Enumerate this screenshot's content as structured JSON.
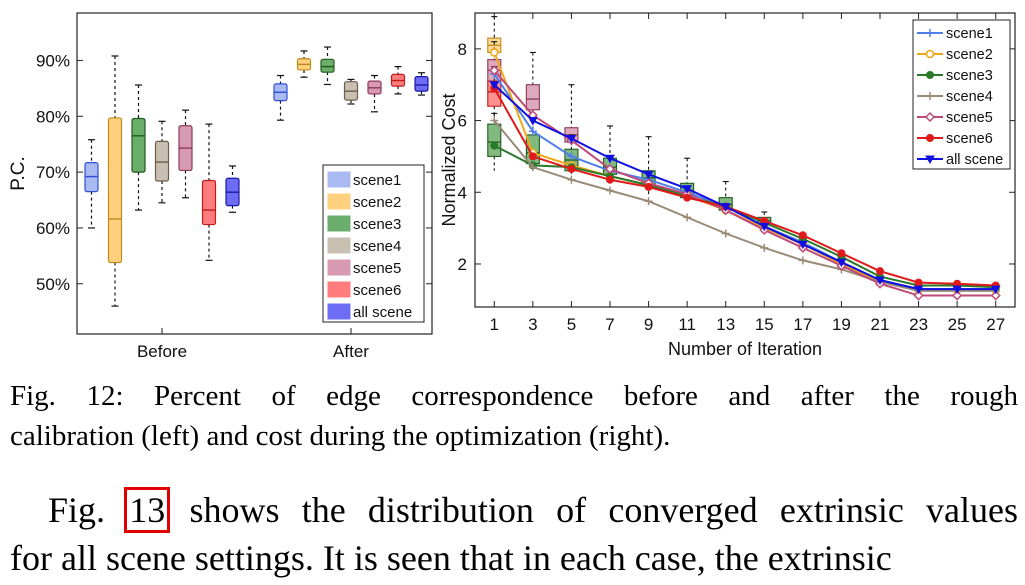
{
  "figure": {
    "caption_line1": "Fig. 12: Percent of edge correspondence before and after the rough",
    "caption_line2": "calibration (left) and cost during the optimization (right)."
  },
  "text": {
    "line1_pre": "Fig. ",
    "line1_ref": "13",
    "line1_post": " shows the distribution of converged extrinsic values",
    "line2": "for all scene settings. It is seen that in each case, the extrinsic"
  },
  "chart_data": [
    {
      "type": "boxplot",
      "ylabel": "P.C.",
      "categories": [
        "Before",
        "After"
      ],
      "ylim": [
        0.41,
        0.985
      ],
      "yticks": [
        0.5,
        0.6,
        0.7,
        0.8,
        0.9
      ],
      "ytick_labels": [
        "50%",
        "60%",
        "70%",
        "80%",
        "90%"
      ],
      "legend_position": "bottom-right",
      "series": [
        {
          "name": "scene1",
          "color": "#a9b9f2",
          "edge": "#3050d8",
          "boxes": [
            {
              "group": "Before",
              "min": 0.6,
              "q1": 0.665,
              "median": 0.692,
              "q3": 0.717,
              "max": 0.758
            },
            {
              "group": "After",
              "min": 0.793,
              "q1": 0.828,
              "median": 0.843,
              "q3": 0.858,
              "max": 0.873
            }
          ]
        },
        {
          "name": "scene2",
          "color": "#ffd17f",
          "edge": "#c08a1a",
          "boxes": [
            {
              "group": "Before",
              "min": 0.46,
              "q1": 0.538,
              "median": 0.616,
              "q3": 0.797,
              "max": 0.908
            },
            {
              "group": "After",
              "min": 0.87,
              "q1": 0.883,
              "median": 0.893,
              "q3": 0.903,
              "max": 0.917
            }
          ]
        },
        {
          "name": "scene3",
          "color": "#6bad6b",
          "edge": "#1f5c1f",
          "boxes": [
            {
              "group": "Before",
              "min": 0.632,
              "q1": 0.7,
              "median": 0.765,
              "q3": 0.796,
              "max": 0.856
            },
            {
              "group": "After",
              "min": 0.857,
              "q1": 0.879,
              "median": 0.889,
              "q3": 0.902,
              "max": 0.924
            }
          ]
        },
        {
          "name": "scene4",
          "color": "#c9bfb1",
          "edge": "#6b5d4a",
          "boxes": [
            {
              "group": "Before",
              "min": 0.645,
              "q1": 0.684,
              "median": 0.718,
              "q3": 0.755,
              "max": 0.791
            },
            {
              "group": "After",
              "min": 0.822,
              "q1": 0.829,
              "median": 0.845,
              "q3": 0.862,
              "max": 0.866
            }
          ]
        },
        {
          "name": "scene5",
          "color": "#d89ab0",
          "edge": "#8a3a58",
          "boxes": [
            {
              "group": "Before",
              "min": 0.654,
              "q1": 0.703,
              "median": 0.743,
              "q3": 0.783,
              "max": 0.811
            },
            {
              "group": "After",
              "min": 0.808,
              "q1": 0.84,
              "median": 0.851,
              "q3": 0.863,
              "max": 0.873
            }
          ]
        },
        {
          "name": "scene6",
          "color": "#ff7c7c",
          "edge": "#c01a1a",
          "boxes": [
            {
              "group": "Before",
              "min": 0.542,
              "q1": 0.606,
              "median": 0.632,
              "q3": 0.685,
              "max": 0.786
            },
            {
              "group": "After",
              "min": 0.84,
              "q1": 0.854,
              "median": 0.864,
              "q3": 0.875,
              "max": 0.889
            }
          ]
        },
        {
          "name": "all scene",
          "color": "#6c6cf5",
          "edge": "#1a1aa8",
          "boxes": [
            {
              "group": "Before",
              "min": 0.628,
              "q1": 0.64,
              "median": 0.664,
              "q3": 0.689,
              "max": 0.711
            },
            {
              "group": "After",
              "min": 0.838,
              "q1": 0.845,
              "median": 0.856,
              "q3": 0.871,
              "max": 0.878
            }
          ]
        }
      ]
    },
    {
      "type": "line",
      "xlabel": "Number of Iteration",
      "ylabel": "Normalized Cost",
      "x": [
        1,
        3,
        5,
        7,
        9,
        11,
        13,
        15,
        17,
        19,
        21,
        23,
        25,
        27
      ],
      "xlim": [
        0,
        28
      ],
      "ylim": [
        0.8,
        9.0
      ],
      "yticks": [
        2,
        4,
        6,
        8
      ],
      "legend_position": "top-right",
      "series": [
        {
          "name": "scene1",
          "color": "#4f7fe8",
          "marker": "plus",
          "values": [
            7.3,
            5.7,
            5.0,
            4.6,
            4.35,
            4.0,
            3.6,
            3.05,
            2.6,
            2.05,
            1.55,
            1.3,
            1.3,
            1.3
          ]
        },
        {
          "name": "scene2",
          "color": "#f0a818",
          "marker": "circle",
          "values": [
            7.9,
            5.1,
            4.75,
            4.45,
            4.2,
            3.9,
            3.5,
            3.0,
            2.55,
            2.0,
            1.5,
            1.28,
            1.28,
            1.28
          ]
        },
        {
          "name": "scene3",
          "color": "#2a7a2a",
          "marker": "dot",
          "values": [
            5.3,
            4.75,
            4.7,
            4.45,
            4.2,
            3.9,
            3.6,
            3.15,
            2.7,
            2.2,
            1.65,
            1.4,
            1.4,
            1.35
          ]
        },
        {
          "name": "scene4",
          "color": "#9a8a78",
          "marker": "plus",
          "values": [
            6.0,
            4.7,
            4.35,
            4.05,
            3.75,
            3.3,
            2.85,
            2.45,
            2.1,
            1.85,
            1.5,
            1.25,
            1.25,
            1.25
          ]
        },
        {
          "name": "scene5",
          "color": "#c04a78",
          "marker": "diamond",
          "values": [
            7.4,
            6.15,
            5.45,
            4.65,
            4.25,
            3.95,
            3.5,
            2.95,
            2.45,
            1.95,
            1.45,
            1.12,
            1.12,
            1.12
          ]
        },
        {
          "name": "scene6",
          "color": "#e01a1a",
          "marker": "dot",
          "values": [
            6.9,
            5.0,
            4.65,
            4.35,
            4.15,
            3.85,
            3.6,
            3.2,
            2.8,
            2.3,
            1.8,
            1.48,
            1.45,
            1.4
          ]
        },
        {
          "name": "all scene",
          "color": "#1010e0",
          "marker": "triangle",
          "values": [
            7.0,
            6.0,
            5.5,
            4.95,
            4.5,
            4.1,
            3.6,
            3.05,
            2.55,
            2.05,
            1.55,
            1.3,
            1.3,
            1.3
          ]
        }
      ],
      "boxes": [
        {
          "x": 1,
          "color": "#ffd17f",
          "edge": "#c08a1a",
          "min": 7.6,
          "q1": 7.9,
          "median": 8.1,
          "q3": 8.3,
          "max": 8.9
        },
        {
          "x": 1,
          "color": "#d89ab0",
          "edge": "#8a3a58",
          "min": 6.8,
          "q1": 7.1,
          "median": 7.4,
          "q3": 7.7,
          "max": 8.2
        },
        {
          "x": 1,
          "color": "#ff7c7c",
          "edge": "#c01a1a",
          "min": 6.0,
          "q1": 6.4,
          "median": 6.8,
          "q3": 7.1,
          "max": 7.5
        },
        {
          "x": 1,
          "color": "#6bad6b",
          "edge": "#1f5c1f",
          "min": 4.6,
          "q1": 5.0,
          "median": 5.4,
          "q3": 5.9,
          "max": 6.2
        },
        {
          "x": 3,
          "color": "#d89ab0",
          "edge": "#8a3a58",
          "min": 5.9,
          "q1": 6.3,
          "median": 6.6,
          "q3": 7.0,
          "max": 7.9
        },
        {
          "x": 3,
          "color": "#6bad6b",
          "edge": "#1f5c1f",
          "min": 4.6,
          "q1": 4.8,
          "median": 5.1,
          "q3": 5.6,
          "max": 6.0
        },
        {
          "x": 5,
          "color": "#d89ab0",
          "edge": "#8a3a58",
          "min": 5.0,
          "q1": 5.4,
          "median": 5.6,
          "q3": 5.8,
          "max": 7.0
        },
        {
          "x": 5,
          "color": "#6bad6b",
          "edge": "#1f5c1f",
          "min": 4.4,
          "q1": 4.6,
          "median": 4.9,
          "q3": 5.2,
          "max": 5.6
        },
        {
          "x": 7,
          "color": "#6bad6b",
          "edge": "#1f5c1f",
          "min": 4.2,
          "q1": 4.5,
          "median": 4.7,
          "q3": 4.95,
          "max": 5.85
        },
        {
          "x": 9,
          "color": "#6bad6b",
          "edge": "#1f5c1f",
          "min": 3.9,
          "q1": 4.2,
          "median": 4.4,
          "q3": 4.6,
          "max": 5.55
        },
        {
          "x": 11,
          "color": "#6bad6b",
          "edge": "#1f5c1f",
          "min": 3.7,
          "q1": 3.85,
          "median": 4.05,
          "q3": 4.25,
          "max": 4.95
        },
        {
          "x": 13,
          "color": "#6bad6b",
          "edge": "#1f5c1f",
          "min": 3.4,
          "q1": 3.5,
          "median": 3.65,
          "q3": 3.85,
          "max": 4.3
        },
        {
          "x": 15,
          "color": "#6bad6b",
          "edge": "#1f5c1f",
          "min": 3.0,
          "q1": 3.1,
          "median": 3.2,
          "q3": 3.3,
          "max": 3.45
        }
      ]
    }
  ]
}
